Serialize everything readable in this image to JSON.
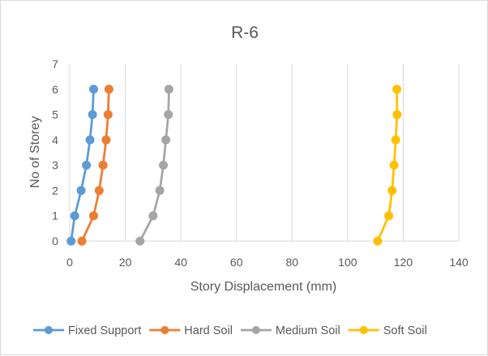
{
  "chart_data": {
    "type": "line",
    "title": "R-6",
    "xlabel": "Story Displacement (mm)",
    "ylabel": "No of Storey",
    "xlim": [
      0,
      140
    ],
    "ylim": [
      0,
      7
    ],
    "x_ticks": [
      "0",
      "20",
      "40",
      "60",
      "80",
      "100",
      "120",
      "140"
    ],
    "y_ticks": [
      "0",
      "1",
      "2",
      "3",
      "4",
      "5",
      "6",
      "7"
    ],
    "grid": "vertical",
    "legend_position": "bottom",
    "series": [
      {
        "name": "Fixed Support",
        "color": "#5b9bd5",
        "x": [
          0.5,
          1.8,
          4.1,
          6.0,
          7.3,
          8.2,
          8.6
        ],
        "y": [
          0,
          1,
          2,
          3,
          4,
          5,
          6
        ]
      },
      {
        "name": "Hard Soil",
        "color": "#ed7d31",
        "x": [
          4.4,
          8.6,
          10.6,
          12.0,
          13.1,
          13.8,
          14.1
        ],
        "y": [
          0,
          1,
          2,
          3,
          4,
          5,
          6
        ]
      },
      {
        "name": "Medium Soil",
        "color": "#a5a5a5",
        "x": [
          25.3,
          30.0,
          32.4,
          33.7,
          34.6,
          35.5,
          35.7
        ],
        "y": [
          0,
          1,
          2,
          3,
          4,
          5,
          6
        ]
      },
      {
        "name": "Soft Soil",
        "color": "#ffc000",
        "x": [
          110.8,
          114.8,
          116.0,
          116.7,
          117.3,
          117.8,
          117.7
        ],
        "y": [
          0,
          1,
          2,
          3,
          4,
          5,
          6
        ]
      }
    ]
  }
}
